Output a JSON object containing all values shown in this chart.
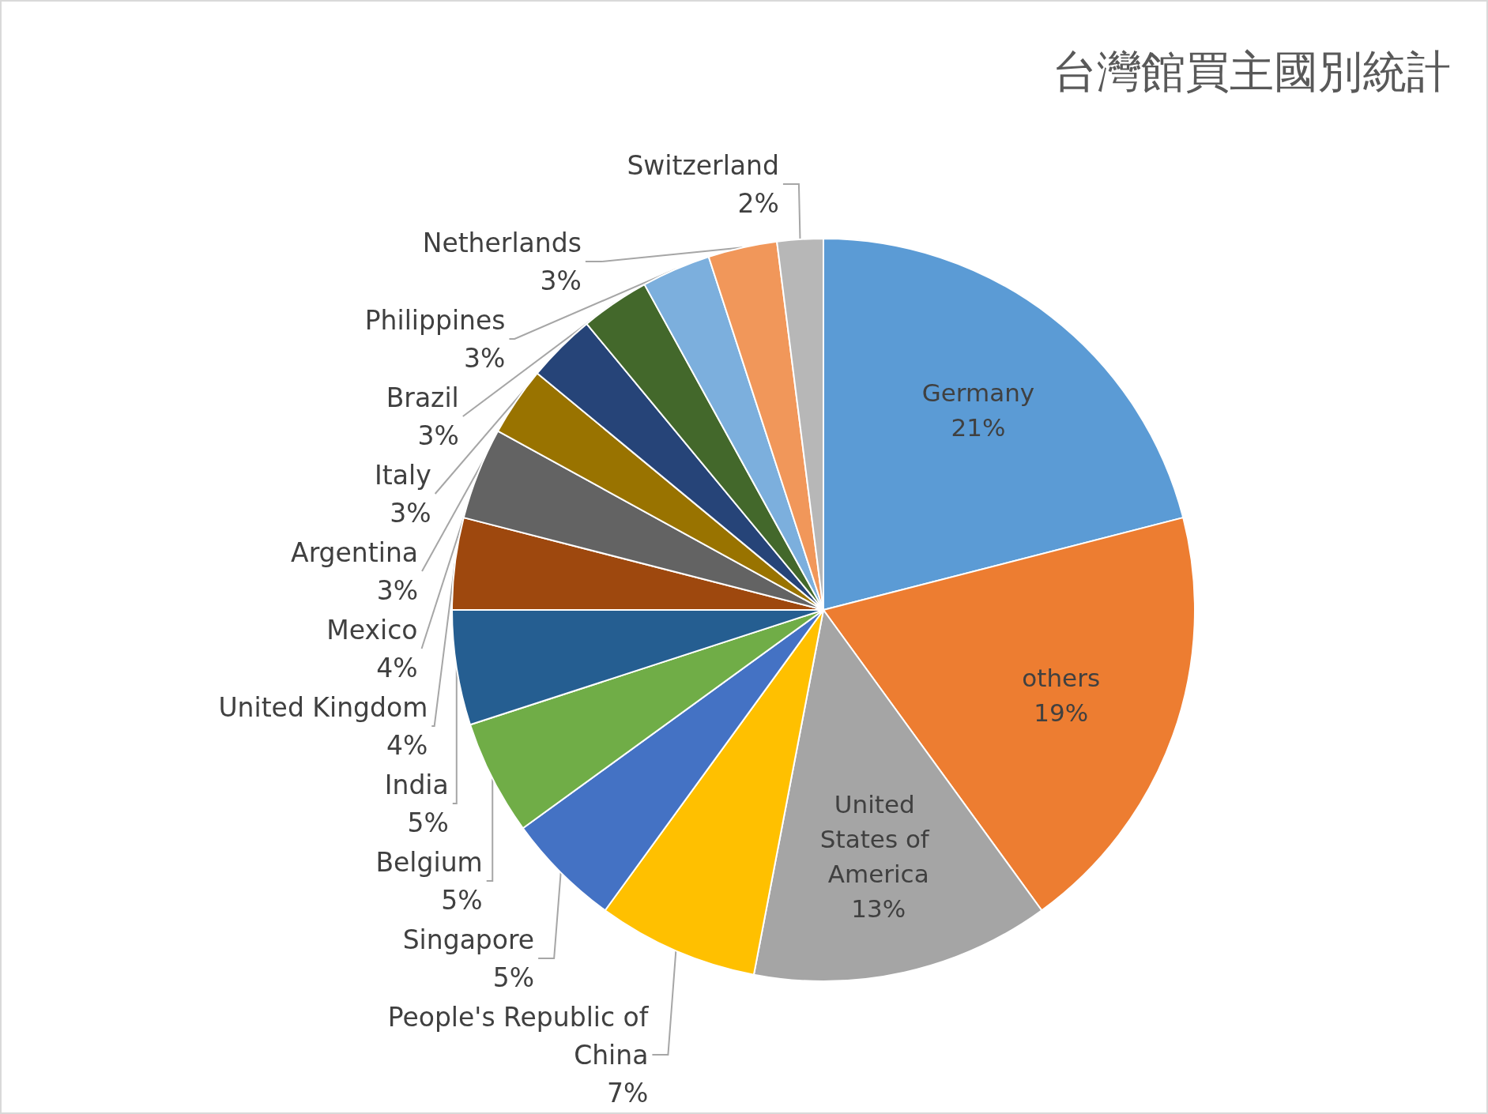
{
  "chart_data": {
    "type": "pie",
    "title": "台灣館買主國別統計",
    "categories": [
      "Germany",
      "others",
      "United States of America",
      "People's Republic of China",
      "Singapore",
      "Belgium",
      "India",
      "United Kingdom",
      "Mexico",
      "Argentina",
      "Italy",
      "Brazil",
      "Philippines",
      "Netherlands",
      "Switzerland"
    ],
    "values": [
      21,
      19,
      13,
      7,
      5,
      5,
      5,
      4,
      4,
      3,
      3,
      3,
      3,
      3,
      2
    ],
    "value_labels": [
      "21%",
      "19%",
      "13%",
      "7%",
      "5%",
      "5%",
      "5%",
      "4%",
      "4%",
      "3%",
      "3%",
      "3%",
      "3%",
      "3%",
      "2%"
    ],
    "colors": [
      "#5b9bd5",
      "#ed7d31",
      "#a5a5a5",
      "#ffc000",
      "#4472c4",
      "#70ad47",
      "#255e91",
      "#9e480e",
      "#636363",
      "#997300",
      "#264478",
      "#43682b",
      "#7cafdd",
      "#f1975a",
      "#b7b7b7"
    ]
  }
}
